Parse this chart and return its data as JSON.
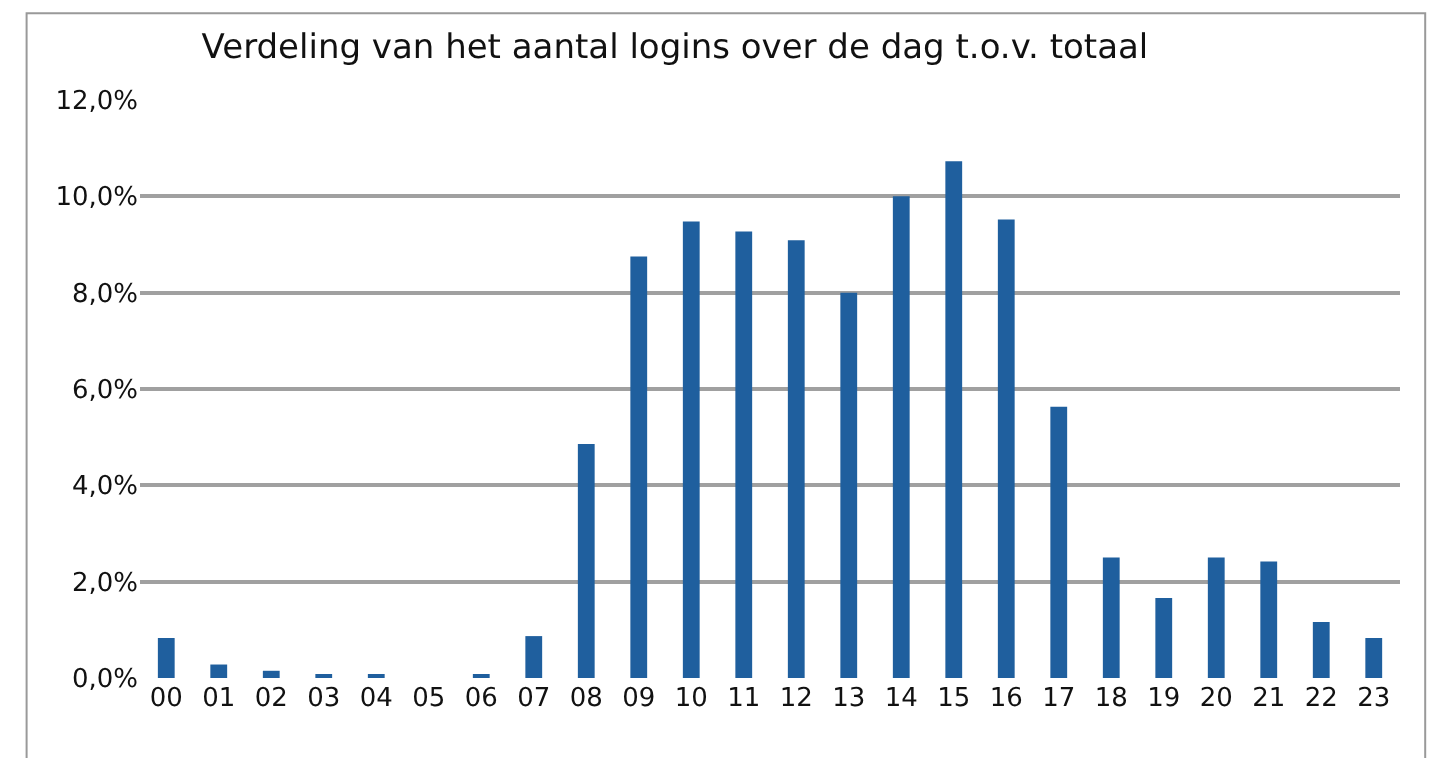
{
  "chart_data": {
    "type": "bar",
    "title": "Verdeling van het aantal logins over de dag t.o.v. totaal",
    "categories": [
      "00",
      "01",
      "02",
      "03",
      "04",
      "05",
      "06",
      "07",
      "08",
      "09",
      "10",
      "11",
      "12",
      "13",
      "14",
      "15",
      "16",
      "17",
      "18",
      "19",
      "20",
      "21",
      "22",
      "23"
    ],
    "values": [
      0.83,
      0.28,
      0.15,
      0.07,
      0.07,
      0,
      0.07,
      0.87,
      4.86,
      8.75,
      9.48,
      9.27,
      9.09,
      8.0,
      10.0,
      10.73,
      9.52,
      5.63,
      2.5,
      1.66,
      2.5,
      2.42,
      1.16,
      0.83
    ],
    "color": "#1f5f9e",
    "ylim": [
      0,
      12
    ],
    "yticks": [
      {
        "value": 0,
        "label": "0,0%"
      },
      {
        "value": 2,
        "label": "2,0%"
      },
      {
        "value": 4,
        "label": "4,0%"
      },
      {
        "value": 6,
        "label": "6,0%"
      },
      {
        "value": 8,
        "label": "8,0%"
      },
      {
        "value": 10,
        "label": "10,0%"
      },
      {
        "value": 12,
        "label": "12,0%"
      }
    ],
    "grid": "y",
    "legend": false
  }
}
